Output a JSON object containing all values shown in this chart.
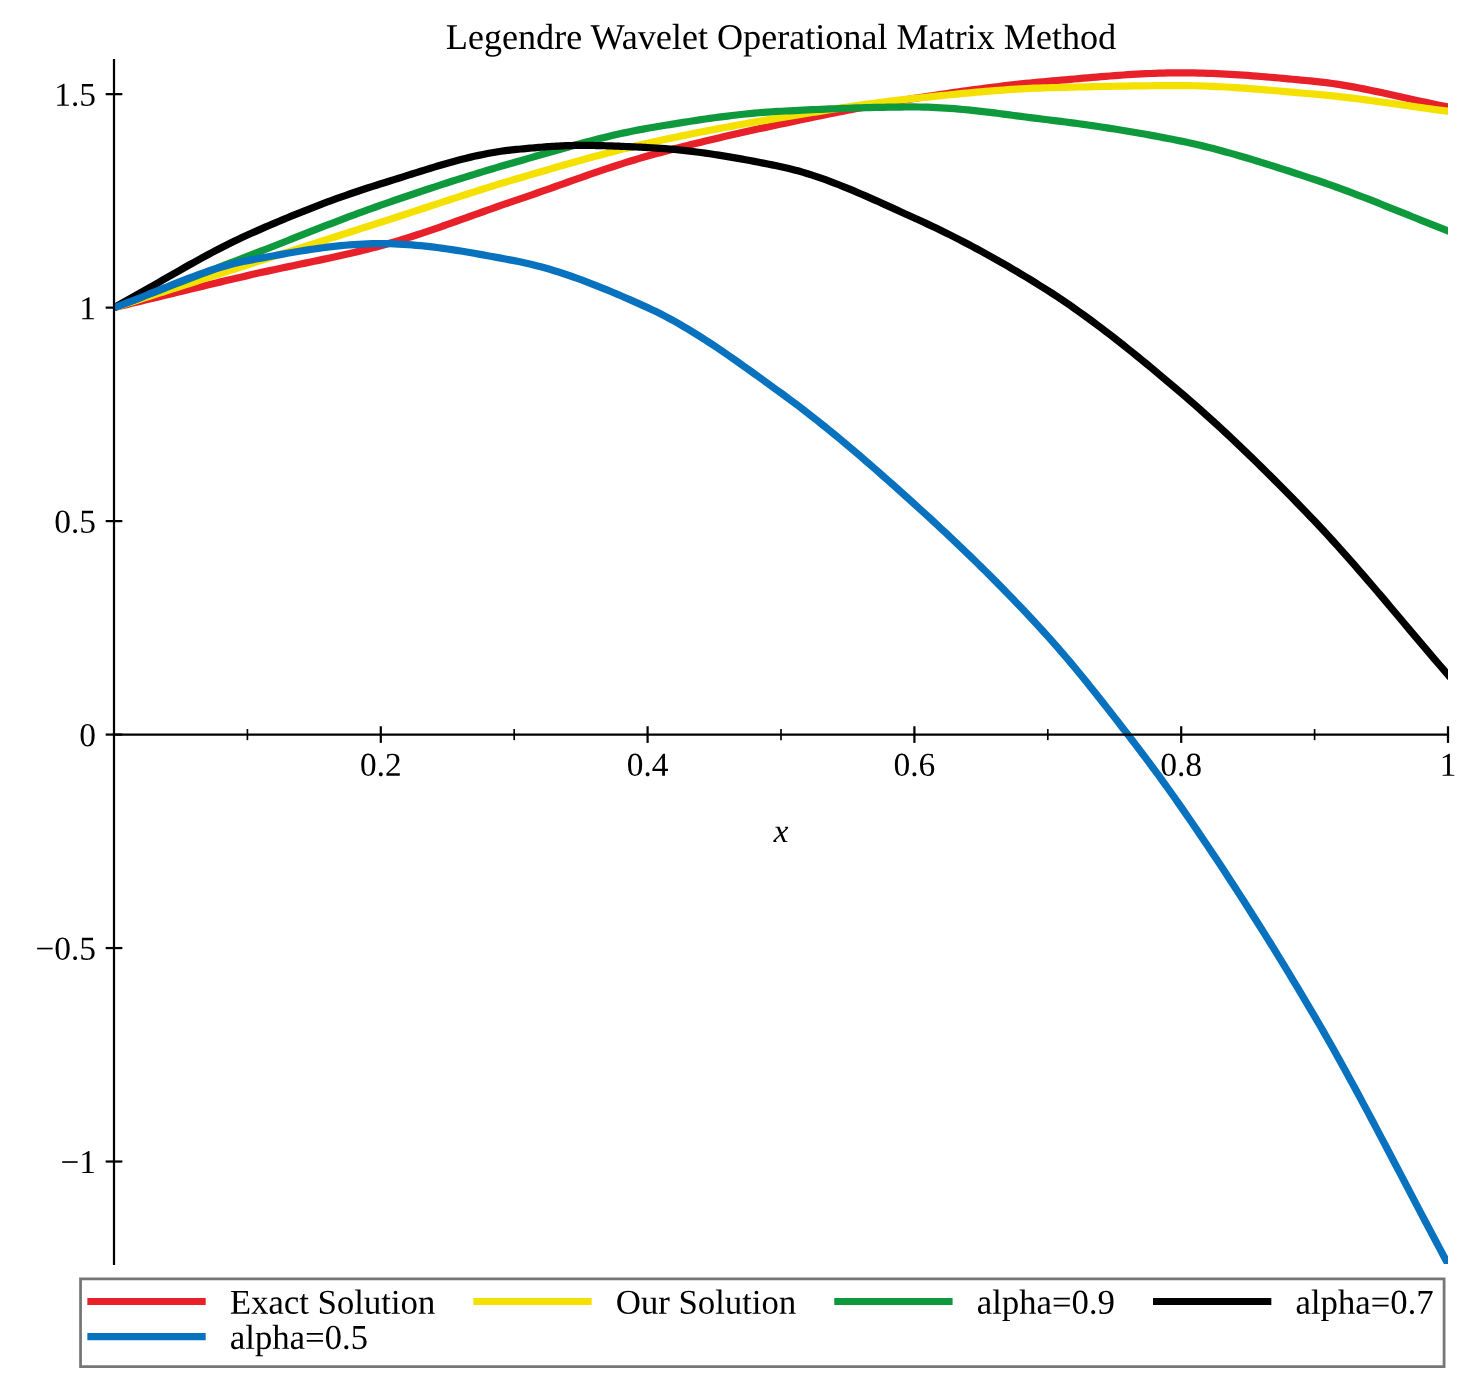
{
  "chart_data": {
    "type": "line",
    "title": "Legendre Wavelet Operational Matrix Method",
    "xlabel": "x",
    "x": [
      0,
      0.1,
      0.2,
      0.3,
      0.4,
      0.5,
      0.6,
      0.7,
      0.8,
      0.9,
      1
    ],
    "series": [
      {
        "name": "Exact Solution",
        "color": "#e8202a",
        "values": [
          1,
          1.075,
          1.145,
          1.25,
          1.355,
          1.43,
          1.49,
          1.53,
          1.55,
          1.53,
          1.47
        ]
      },
      {
        "name": "Our Solution",
        "color": "#f5e100",
        "values": [
          1,
          1.1,
          1.2,
          1.3,
          1.385,
          1.445,
          1.49,
          1.515,
          1.52,
          1.5,
          1.46
        ]
      },
      {
        "name": "alpha=0.9",
        "color": "#0e9a3c",
        "values": [
          1,
          1.12,
          1.24,
          1.34,
          1.42,
          1.46,
          1.47,
          1.44,
          1.39,
          1.3,
          1.18
        ]
      },
      {
        "name": "alpha=0.7",
        "color": "#000000",
        "x": [
          0,
          0.1,
          0.2,
          0.3,
          0.35,
          0.4,
          0.5,
          0.6,
          0.7,
          0.8,
          0.9,
          1
        ],
        "values": [
          1,
          1.17,
          1.29,
          1.37,
          1.38,
          1.375,
          1.33,
          1.21,
          1.04,
          0.8,
          0.5,
          0.14
        ]
      },
      {
        "name": "alpha=0.5",
        "color": "#0872bf",
        "x": [
          0,
          0.1,
          0.2,
          0.3,
          0.4,
          0.5,
          0.6,
          0.7,
          0.76,
          0.8,
          0.9,
          1
        ],
        "values": [
          1,
          1.11,
          1.15,
          1.11,
          1.0,
          0.8,
          0.54,
          0.23,
          0,
          -0.17,
          -0.66,
          -1.24
        ]
      }
    ],
    "xlim": [
      0,
      1
    ],
    "ylim": [
      -1.24,
      1.58
    ],
    "xticks": [
      {
        "value": 0.1,
        "label": null
      },
      0.2,
      {
        "value": 0.3,
        "label": null
      },
      0.4,
      {
        "value": 0.5,
        "label": null
      },
      0.6,
      {
        "value": 0.7,
        "label": null
      },
      0.8,
      {
        "value": 0.9,
        "label": null
      },
      1
    ],
    "yticks": [
      {
        "value": -1,
        "label": "−1"
      },
      {
        "value": -0.5,
        "label": "−0.5"
      },
      0,
      0.5,
      1,
      1.5
    ],
    "legend": "bottom",
    "grid": false
  }
}
